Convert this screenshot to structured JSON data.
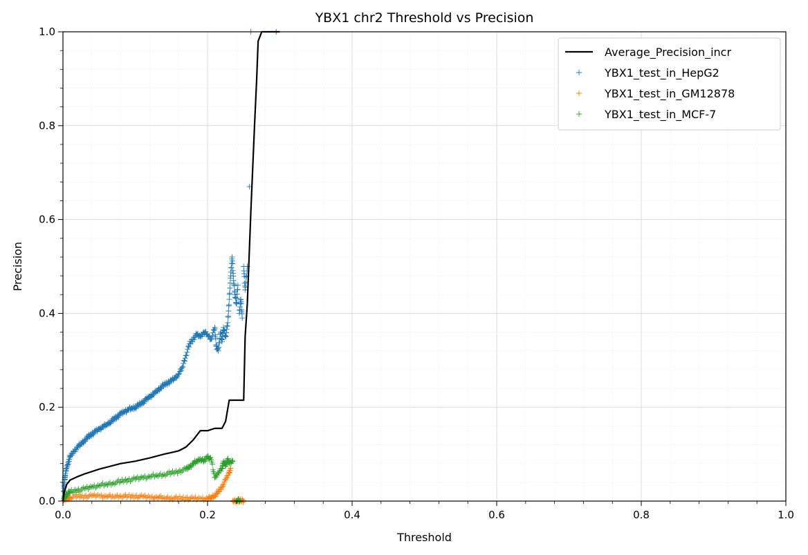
{
  "chart_data": {
    "type": "scatter",
    "title": "YBX1 chr2 Threshold vs Precision",
    "xlabel": "Threshold",
    "ylabel": "Precision",
    "xlim": [
      0,
      1
    ],
    "ylim": [
      0,
      1
    ],
    "xticks": [
      "0.0",
      "0.2",
      "0.4",
      "0.6",
      "0.8",
      "1.0"
    ],
    "yticks": [
      "0.0",
      "0.2",
      "0.4",
      "0.6",
      "0.8",
      "1.0"
    ],
    "grid": true,
    "minor_grid": true,
    "legend_position": "top-right",
    "series": [
      {
        "name": "Average_Precision_incr",
        "kind": "line",
        "color": "#000000",
        "x": [
          0,
          0.002,
          0.005,
          0.01,
          0.02,
          0.03,
          0.05,
          0.08,
          0.1,
          0.12,
          0.14,
          0.16,
          0.17,
          0.18,
          0.19,
          0.2,
          0.21,
          0.22,
          0.225,
          0.23,
          0.24,
          0.25,
          0.252,
          0.255,
          0.26,
          0.265,
          0.268,
          0.27,
          0.275,
          0.28,
          0.3
        ],
        "y": [
          0,
          0.02,
          0.035,
          0.045,
          0.052,
          0.058,
          0.068,
          0.08,
          0.085,
          0.092,
          0.1,
          0.107,
          0.115,
          0.13,
          0.15,
          0.15,
          0.155,
          0.155,
          0.17,
          0.215,
          0.215,
          0.215,
          0.35,
          0.42,
          0.62,
          0.8,
          0.9,
          0.98,
          1.0,
          1.0,
          1.0
        ]
      },
      {
        "name": "YBX1_test_in_HepG2",
        "kind": "scatter",
        "marker": "+",
        "color": "#1f77b4",
        "points": [
          [
            0.001,
            0.02
          ],
          [
            0.002,
            0.04
          ],
          [
            0.003,
            0.055
          ],
          [
            0.005,
            0.07
          ],
          [
            0.008,
            0.085
          ],
          [
            0.01,
            0.095
          ],
          [
            0.015,
            0.105
          ],
          [
            0.02,
            0.115
          ],
          [
            0.025,
            0.122
          ],
          [
            0.03,
            0.13
          ],
          [
            0.035,
            0.137
          ],
          [
            0.04,
            0.143
          ],
          [
            0.045,
            0.148
          ],
          [
            0.05,
            0.153
          ],
          [
            0.055,
            0.158
          ],
          [
            0.06,
            0.163
          ],
          [
            0.065,
            0.168
          ],
          [
            0.07,
            0.174
          ],
          [
            0.075,
            0.18
          ],
          [
            0.08,
            0.186
          ],
          [
            0.085,
            0.19
          ],
          [
            0.09,
            0.195
          ],
          [
            0.095,
            0.198
          ],
          [
            0.1,
            0.2
          ],
          [
            0.105,
            0.205
          ],
          [
            0.11,
            0.21
          ],
          [
            0.115,
            0.216
          ],
          [
            0.12,
            0.222
          ],
          [
            0.125,
            0.228
          ],
          [
            0.13,
            0.235
          ],
          [
            0.135,
            0.242
          ],
          [
            0.14,
            0.248
          ],
          [
            0.145,
            0.252
          ],
          [
            0.15,
            0.256
          ],
          [
            0.155,
            0.262
          ],
          [
            0.16,
            0.27
          ],
          [
            0.165,
            0.285
          ],
          [
            0.17,
            0.31
          ],
          [
            0.175,
            0.335
          ],
          [
            0.18,
            0.345
          ],
          [
            0.185,
            0.355
          ],
          [
            0.19,
            0.35
          ],
          [
            0.195,
            0.36
          ],
          [
            0.2,
            0.355
          ],
          [
            0.205,
            0.345
          ],
          [
            0.21,
            0.37
          ],
          [
            0.212,
            0.33
          ],
          [
            0.215,
            0.32
          ],
          [
            0.218,
            0.36
          ],
          [
            0.22,
            0.34
          ],
          [
            0.222,
            0.37
          ],
          [
            0.225,
            0.35
          ],
          [
            0.228,
            0.38
          ],
          [
            0.23,
            0.43
          ],
          [
            0.232,
            0.48
          ],
          [
            0.234,
            0.52
          ],
          [
            0.236,
            0.47
          ],
          [
            0.238,
            0.44
          ],
          [
            0.24,
            0.42
          ],
          [
            0.242,
            0.46
          ],
          [
            0.244,
            0.4
          ],
          [
            0.246,
            0.43
          ],
          [
            0.248,
            0.39
          ],
          [
            0.25,
            0.5
          ],
          [
            0.252,
            0.45
          ],
          [
            0.255,
            0.5
          ],
          [
            0.258,
            0.67
          ],
          [
            0.26,
            1.0
          ],
          [
            0.295,
            1.0
          ]
        ]
      },
      {
        "name": "YBX1_test_in_GM12878",
        "kind": "scatter",
        "marker": "+",
        "color": "#ff7f0e",
        "points": [
          [
            0.001,
            0.002
          ],
          [
            0.005,
            0.005
          ],
          [
            0.01,
            0.008
          ],
          [
            0.02,
            0.01
          ],
          [
            0.03,
            0.01
          ],
          [
            0.04,
            0.011
          ],
          [
            0.05,
            0.011
          ],
          [
            0.06,
            0.01
          ],
          [
            0.07,
            0.01
          ],
          [
            0.08,
            0.011
          ],
          [
            0.09,
            0.01
          ],
          [
            0.1,
            0.01
          ],
          [
            0.11,
            0.009
          ],
          [
            0.12,
            0.008
          ],
          [
            0.13,
            0.008
          ],
          [
            0.14,
            0.007
          ],
          [
            0.15,
            0.007
          ],
          [
            0.16,
            0.006
          ],
          [
            0.17,
            0.006
          ],
          [
            0.18,
            0.005
          ],
          [
            0.19,
            0.005
          ],
          [
            0.2,
            0.005
          ],
          [
            0.205,
            0.008
          ],
          [
            0.21,
            0.012
          ],
          [
            0.215,
            0.02
          ],
          [
            0.22,
            0.03
          ],
          [
            0.225,
            0.045
          ],
          [
            0.23,
            0.06
          ],
          [
            0.232,
            0.07
          ],
          [
            0.235,
            0.001
          ],
          [
            0.24,
            0.001
          ],
          [
            0.245,
            0.001
          ],
          [
            0.25,
            0.001
          ]
        ]
      },
      {
        "name": "YBX1_test_in_MCF-7",
        "kind": "scatter",
        "marker": "+",
        "color": "#2ca02c",
        "points": [
          [
            0.001,
            0.005
          ],
          [
            0.003,
            0.01
          ],
          [
            0.005,
            0.015
          ],
          [
            0.01,
            0.02
          ],
          [
            0.02,
            0.023
          ],
          [
            0.03,
            0.026
          ],
          [
            0.04,
            0.03
          ],
          [
            0.05,
            0.033
          ],
          [
            0.06,
            0.036
          ],
          [
            0.07,
            0.039
          ],
          [
            0.08,
            0.042
          ],
          [
            0.09,
            0.045
          ],
          [
            0.1,
            0.047
          ],
          [
            0.11,
            0.05
          ],
          [
            0.12,
            0.052
          ],
          [
            0.13,
            0.055
          ],
          [
            0.14,
            0.057
          ],
          [
            0.15,
            0.06
          ],
          [
            0.16,
            0.063
          ],
          [
            0.17,
            0.068
          ],
          [
            0.175,
            0.072
          ],
          [
            0.18,
            0.08
          ],
          [
            0.185,
            0.085
          ],
          [
            0.19,
            0.09
          ],
          [
            0.195,
            0.085
          ],
          [
            0.2,
            0.095
          ],
          [
            0.205,
            0.088
          ],
          [
            0.21,
            0.05
          ],
          [
            0.215,
            0.06
          ],
          [
            0.22,
            0.07
          ],
          [
            0.222,
            0.085
          ],
          [
            0.225,
            0.075
          ],
          [
            0.228,
            0.09
          ],
          [
            0.23,
            0.08
          ],
          [
            0.235,
            0.085
          ],
          [
            0.24,
            0.001
          ],
          [
            0.245,
            0.001
          ]
        ]
      }
    ]
  }
}
